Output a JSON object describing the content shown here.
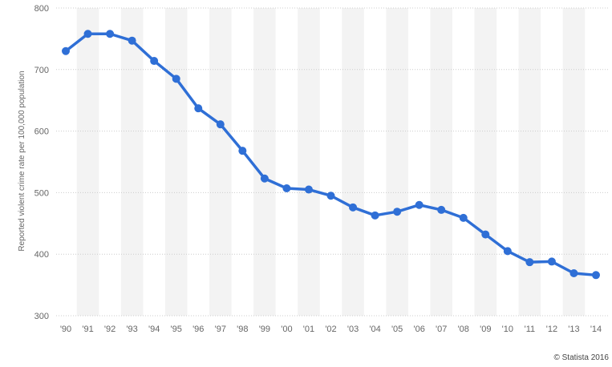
{
  "chart_data": {
    "type": "line",
    "title": "",
    "xlabel": "",
    "ylabel": "Reported violent crime rate per 100,000 population",
    "categories": [
      "'90",
      "'91",
      "'92",
      "'93",
      "'94",
      "'95",
      "'96",
      "'97",
      "'98",
      "'99",
      "'00",
      "'01",
      "'02",
      "'03",
      "'04",
      "'05",
      "'06",
      "'07",
      "'08",
      "'09",
      "'10",
      "'11",
      "'12",
      "'13",
      "'14"
    ],
    "series": [
      {
        "name": "",
        "color": "#2f6fd6",
        "values": [
          730,
          758,
          758,
          747,
          714,
          685,
          637,
          611,
          568,
          523,
          507,
          505,
          495,
          476,
          463,
          469,
          480,
          472,
          459,
          432,
          405,
          387,
          388,
          369,
          366
        ]
      }
    ],
    "yticks": [
      300,
      400,
      500,
      600,
      700,
      800
    ],
    "ylim": [
      300,
      800
    ],
    "grid": true,
    "legend": "none",
    "band_color": "#f3f3f3",
    "grid_color": "#cccccc"
  },
  "credit": "© Statista 2016"
}
